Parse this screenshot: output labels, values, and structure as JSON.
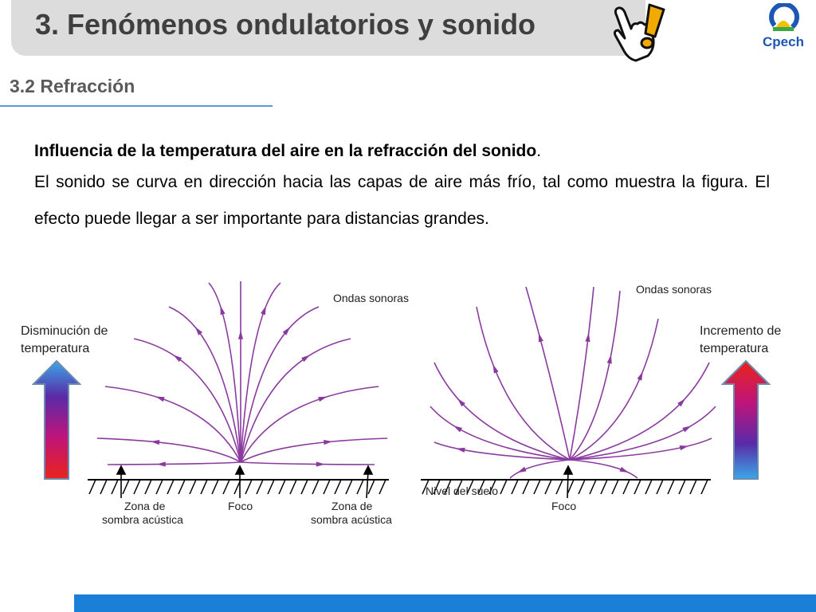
{
  "slide": {
    "title": "3. Fenómenos ondulatorios y sonido",
    "subtitle": "3.2 Refracción",
    "logo_text": "Cpech"
  },
  "content": {
    "heading": "Influencia de la temperatura del aire en la refracción del sonido",
    "heading_end": ".",
    "paragraph": "El sonido se curva en dirección hacia las capas de aire más frío, tal como muestra la figura. El efecto puede llegar a ser importante para distancias grandes."
  },
  "figure": {
    "left": {
      "temp_label_line1": "Disminución de",
      "temp_label_line2": "temperatura",
      "waves_label": "Ondas sonoras",
      "shadow_zone_left_line1": "Zona de",
      "shadow_zone_left_line2": "sombra acústica",
      "focus_label": "Foco",
      "shadow_zone_right_line1": "Zona de",
      "shadow_zone_right_line2": "sombra acústica"
    },
    "right": {
      "temp_label_line1": "Incremento de",
      "temp_label_line2": "temperatura",
      "waves_label": "Ondas sonoras",
      "ground_label": "Nivel del suelo",
      "focus_label": "Foco"
    },
    "colors": {
      "ray": "#8a3a9e",
      "ground": "#000000",
      "arrow_hot": "#e8241a",
      "arrow_cold": "#3aa8e8",
      "arrow_mid": "#7a1fa2"
    }
  }
}
